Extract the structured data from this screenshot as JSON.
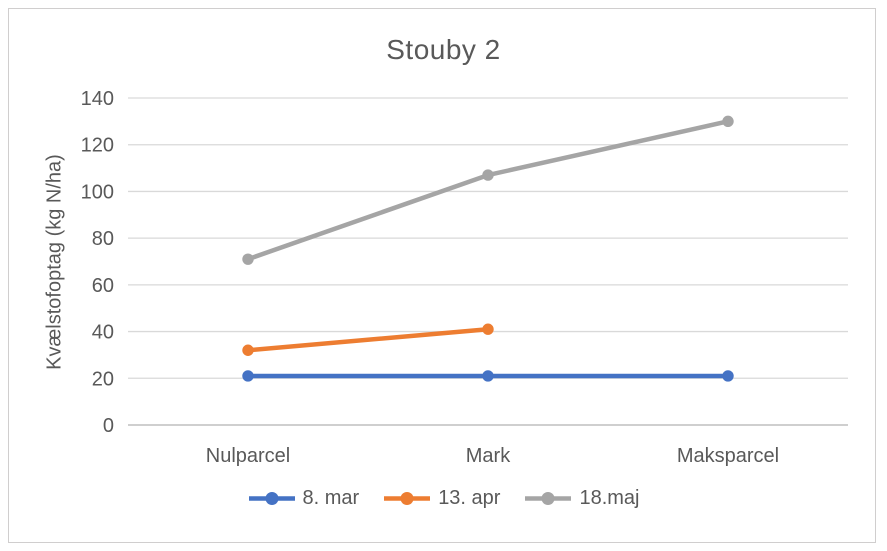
{
  "chart": {
    "title": "Stouby 2"
  },
  "chart_data": {
    "type": "line",
    "title": "Stouby 2",
    "xlabel": "",
    "ylabel": "Kvælstofoptag (kg N/ha)",
    "categories": [
      "Nulparcel",
      "Mark",
      "Maksparcel"
    ],
    "series": [
      {
        "name": "8. mar",
        "color": "#4472C4",
        "values": [
          21,
          21,
          21
        ]
      },
      {
        "name": "13. apr",
        "color": "#ED7D31",
        "values": [
          32,
          41,
          null
        ]
      },
      {
        "name": "18.maj",
        "color": "#A5A5A5",
        "values": [
          71,
          107,
          130
        ]
      }
    ],
    "ylim": [
      0,
      140
    ],
    "yticks": [
      0,
      20,
      40,
      60,
      80,
      100,
      120,
      140
    ],
    "grid": true,
    "marker": "circle",
    "legend_position": "bottom"
  },
  "colors": {
    "gridline": "#d9d9d9",
    "axis_line": "#bfbfbf",
    "axis_text": "#595959",
    "title_text": "#595959",
    "frame_border": "#d0cece"
  }
}
